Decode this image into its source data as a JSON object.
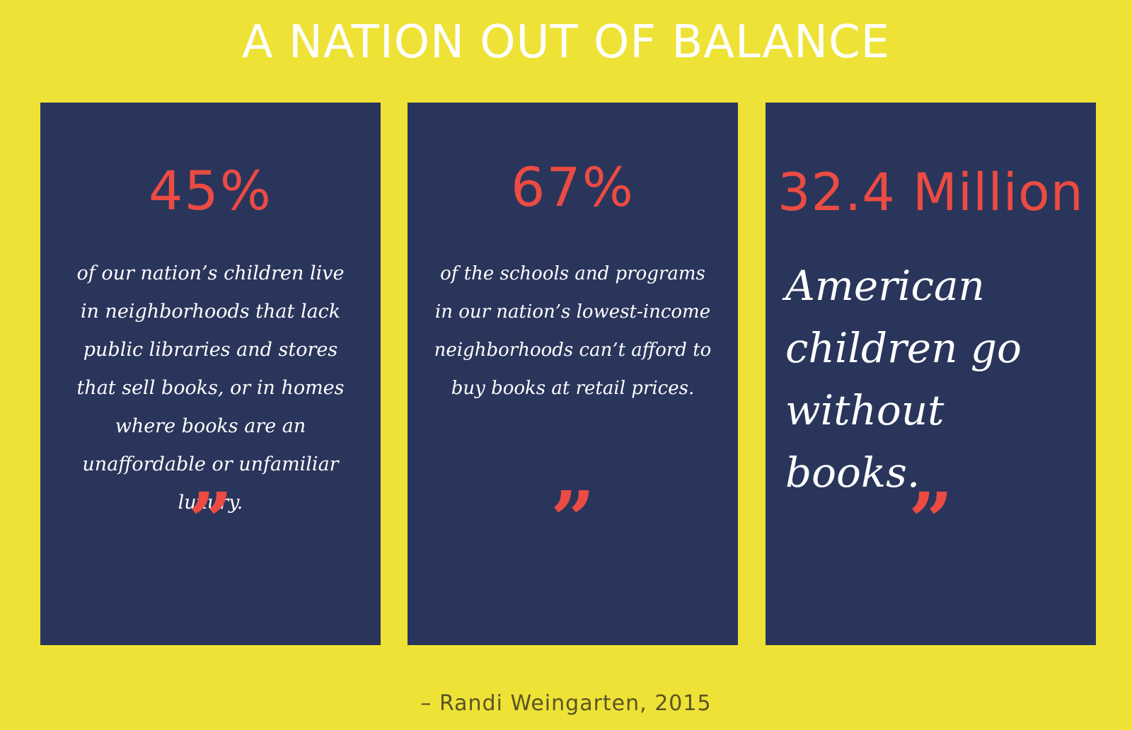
{
  "page": {
    "title": "A NATION OUT OF BALANCE",
    "background_color": "#EEE236",
    "card_color": "#2A355B",
    "accent_color": "#EC4B43"
  },
  "cards": [
    {
      "stat": "45%",
      "description": "of our nation’s children live in neighborhoods that lack public libraries and stores that sell books, or in homes where books are an unaffordable or unfamiliar luxury.",
      "quote_mark": "”"
    },
    {
      "stat": "67%",
      "description": "of the schools and programs in our nation’s lowest-income neighborhoods can’t afford to buy books at retail prices.",
      "quote_mark": "”"
    },
    {
      "stat": "32.4 Million",
      "description": "American children go without books.",
      "quote_mark": "”"
    }
  ],
  "attribution": "– Randi Weingarten, 2015"
}
